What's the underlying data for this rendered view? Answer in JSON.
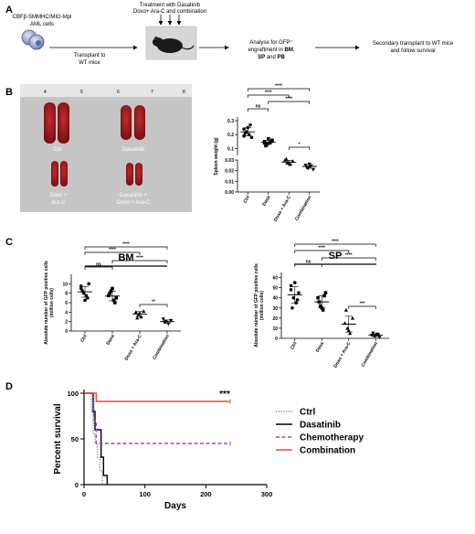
{
  "panels": {
    "a": {
      "label": "A",
      "cells_line1": "CBFβ-SMMHC/MIG-Mpl",
      "cells_line2": "AML cells",
      "step1_line1": "Transplant to",
      "step1_line2": "WT mice",
      "treat_line1": "Treatment with Dasatinib",
      "treat_line2": "Doxo+ Ara-C and combination",
      "analyse_line1": "Analyse for GFP⁺",
      "analyse_line2_pre": "engraftment in ",
      "analyse_bm": "BM",
      "analyse_sep": ",",
      "analyse_sp": "SP",
      "analyse_and": " and ",
      "analyse_pb": "PB",
      "secondary_line1": "Secondary transplant to WT mice",
      "secondary_line2": "and follow survival"
    },
    "b": {
      "label": "B",
      "photo": {
        "ruler_numbers": [
          "4",
          "5",
          "6",
          "7",
          "8"
        ],
        "ctrl": "Ctrl",
        "dasatinib": "Dasatinib",
        "doxo_line1": "Doxo +",
        "doxo_line2": "Ara-C",
        "combo_line1": "Dasatinib +",
        "combo_line2": "Doxo + Ara-C"
      }
    },
    "c": {
      "label": "C"
    },
    "d": {
      "label": "D"
    }
  },
  "colors": {
    "ctrl": "#888888",
    "dasatinib": "#000000",
    "chemotherapy": "#9b4fc0",
    "combination": "#e0503a"
  },
  "chart_data": [
    {
      "id": "spleen",
      "type": "scatter",
      "title": "",
      "xlabel": "",
      "ylabel": "Spleen weight (g)",
      "categories": [
        "Ctrl",
        "Dasa",
        "Doxo + Ara-C",
        "Combination"
      ],
      "axis_break": true,
      "upper_ticks": [
        "0.1",
        "0.2",
        "0.3"
      ],
      "lower_ticks": [
        "0.00",
        "0.01",
        "0.02",
        "0.03"
      ],
      "points": [
        [
          0.24,
          0.22,
          0.2,
          0.18,
          0.21,
          0.25,
          0.27,
          0.19
        ],
        [
          0.15,
          0.13,
          0.14,
          0.16,
          0.12,
          0.17,
          0.15,
          0.14
        ],
        [
          0.03,
          0.028,
          0.026,
          0.029,
          0.031,
          0.027
        ],
        [
          0.025,
          0.022,
          0.024,
          0.021,
          0.023,
          0.026
        ]
      ],
      "means": [
        0.22,
        0.145,
        0.028,
        0.024
      ],
      "significance": [
        {
          "a": 0,
          "b": 1,
          "label": "ns"
        },
        {
          "a": 0,
          "b": 2,
          "label": "****"
        },
        {
          "a": 0,
          "b": 3,
          "label": "****"
        },
        {
          "a": 1,
          "b": 3,
          "label": "****"
        },
        {
          "a": 2,
          "b": 3,
          "label": "*"
        }
      ]
    },
    {
      "id": "bm",
      "type": "scatter",
      "title": "BM",
      "xlabel": "",
      "ylabel_line1": "Absolute number of GFP positive cells",
      "ylabel_line2": "(million cells)",
      "categories": [
        "Ctrl",
        "Dasa",
        "Doxo + Ara-C",
        "Combination"
      ],
      "ylim": [
        0,
        12
      ],
      "ticks": [
        "0",
        "2",
        "4",
        "6",
        "8",
        "10"
      ],
      "points": [
        [
          9,
          8,
          7.5,
          10,
          8.5,
          6.5,
          7,
          9.5
        ],
        [
          7.5,
          8.5,
          6.5,
          7,
          8,
          9,
          6
        ],
        [
          4,
          3.5,
          3,
          4.2,
          2.8,
          3.8
        ],
        [
          2.5,
          2,
          1.5,
          2.2,
          1.8
        ]
      ],
      "means": [
        8.3,
        7.4,
        3.6,
        2.0
      ],
      "significance": [
        {
          "a": 0,
          "b": 1,
          "label": "ns"
        },
        {
          "a": 0,
          "b": 2,
          "label": "****"
        },
        {
          "a": 0,
          "b": 3,
          "label": "****"
        },
        {
          "a": 1,
          "b": 3,
          "label": "****"
        },
        {
          "a": 2,
          "b": 3,
          "label": "**"
        }
      ]
    },
    {
      "id": "sp",
      "type": "scatter",
      "title": "SP",
      "xlabel": "",
      "ylabel_line1": "Absolute number of GFP positive cells",
      "ylabel_line2": "(million cells)",
      "categories": [
        "Ctrl",
        "Dasa",
        "Doxo + Ara-C",
        "Combination"
      ],
      "ylim": [
        0,
        65
      ],
      "ticks": [
        "0",
        "10",
        "20",
        "30",
        "40",
        "50",
        "60"
      ],
      "points": [
        [
          52,
          40,
          35,
          45,
          30,
          55,
          38,
          48
        ],
        [
          40,
          32,
          28,
          45,
          36,
          30,
          42
        ],
        [
          15,
          10,
          5,
          20,
          28,
          8
        ],
        [
          3,
          2,
          4,
          1,
          5,
          2.5,
          3.5
        ]
      ],
      "means": [
        43,
        36,
        14,
        3
      ],
      "significance": [
        {
          "a": 0,
          "b": 1,
          "label": "ns"
        },
        {
          "a": 0,
          "b": 2,
          "label": "****"
        },
        {
          "a": 0,
          "b": 3,
          "label": "****"
        },
        {
          "a": 1,
          "b": 3,
          "label": "****"
        },
        {
          "a": 2,
          "b": 3,
          "label": "***"
        }
      ]
    },
    {
      "id": "survival",
      "type": "line",
      "title": "",
      "xlabel": "Days",
      "ylabel": "Percent survival",
      "xlim": [
        0,
        300
      ],
      "ylim": [
        0,
        100
      ],
      "xticks": [
        "0",
        "100",
        "200",
        "300"
      ],
      "yticks": [
        "0",
        "50",
        "100"
      ],
      "annotation": "***",
      "series": [
        {
          "name": "Ctrl",
          "style": "dotted",
          "points": [
            [
              0,
              100
            ],
            [
              10,
              100
            ],
            [
              12,
              80
            ],
            [
              15,
              55
            ],
            [
              18,
              45
            ],
            [
              22,
              30
            ],
            [
              26,
              15
            ],
            [
              30,
              0
            ]
          ]
        },
        {
          "name": "Dasatinib",
          "style": "solid",
          "points": [
            [
              0,
              100
            ],
            [
              12,
              100
            ],
            [
              15,
              80
            ],
            [
              18,
              60
            ],
            [
              26,
              60
            ],
            [
              28,
              30
            ],
            [
              32,
              10
            ],
            [
              38,
              10
            ],
            [
              38,
              0
            ]
          ]
        },
        {
          "name": "Chemotherapy",
          "style": "dashed",
          "points": [
            [
              0,
              100
            ],
            [
              14,
              100
            ],
            [
              16,
              70
            ],
            [
              20,
              45
            ],
            [
              240,
              45
            ]
          ]
        },
        {
          "name": "Combination",
          "style": "solid",
          "points": [
            [
              0,
              100
            ],
            [
              18,
              100
            ],
            [
              20,
              91
            ],
            [
              240,
              91
            ]
          ]
        }
      ]
    }
  ]
}
